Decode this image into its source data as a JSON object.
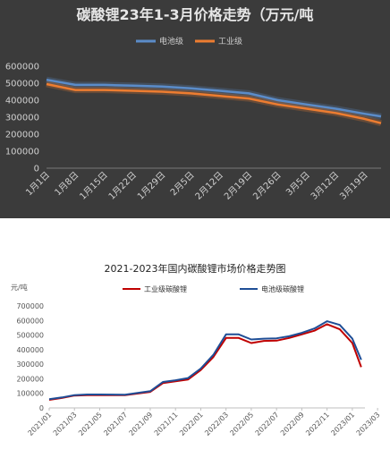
{
  "chart_data": [
    {
      "type": "line",
      "title": "碳酸锂23年1-3月价格走势（万元/吨",
      "background": "#3b3b3b",
      "ylim": [
        0,
        600000
      ],
      "yticks": [
        "600000",
        "500000",
        "400000",
        "300000",
        "200000",
        "100000",
        "0"
      ],
      "categories": [
        "1月1日",
        "1月8日",
        "1月15日",
        "1月22日",
        "1月29日",
        "2月5日",
        "2月12日",
        "2月19日",
        "2月26日",
        "3月5日",
        "3月12日",
        "3月19日"
      ],
      "grid": false,
      "legend": "top",
      "series": [
        {
          "name": "电池级",
          "color": "#5b8cc9",
          "x": [
            0,
            7,
            14,
            21,
            28,
            35,
            42,
            49,
            56,
            63,
            70,
            77,
            81
          ],
          "values": [
            520000,
            490000,
            490000,
            485000,
            480000,
            470000,
            455000,
            440000,
            400000,
            375000,
            350000,
            320000,
            305000
          ]
        },
        {
          "name": "工业级",
          "color": "#ed7d31",
          "x": [
            0,
            7,
            14,
            21,
            28,
            35,
            42,
            49,
            56,
            63,
            70,
            77,
            81
          ],
          "values": [
            495000,
            460000,
            460000,
            455000,
            450000,
            440000,
            425000,
            410000,
            375000,
            350000,
            325000,
            290000,
            265000
          ]
        }
      ]
    },
    {
      "type": "line",
      "title": "2021-2023年国内碳酸锂市场价格走势图",
      "ylabel": "元/吨",
      "ylim": [
        0,
        700000
      ],
      "yticks": [
        "700000",
        "600000",
        "500000",
        "400000",
        "300000",
        "200000",
        "100000",
        "0"
      ],
      "categories": [
        "2021/01",
        "2021/03",
        "2021/05",
        "2021/07",
        "2021/09",
        "2021/11",
        "2022/01",
        "2022/03",
        "2022/05",
        "2022/07",
        "2022/09",
        "2022/11",
        "2023/01",
        "2023/03"
      ],
      "grid": false,
      "legend": "top",
      "series": [
        {
          "name": "工业级碳酸锂",
          "color": "#c00000",
          "x": [
            0,
            1,
            2,
            3,
            4,
            6,
            8,
            9,
            10,
            11,
            12,
            13,
            14,
            15,
            16,
            17,
            18,
            19,
            20,
            21,
            22,
            23,
            24,
            24.7
          ],
          "values": [
            55000,
            68000,
            85000,
            88000,
            88000,
            87000,
            110000,
            170000,
            183000,
            195000,
            260000,
            350000,
            480000,
            480000,
            445000,
            460000,
            462000,
            480000,
            505000,
            530000,
            575000,
            540000,
            445000,
            280000
          ]
        },
        {
          "name": "电池级碳酸锂",
          "color": "#1f4e96",
          "x": [
            0,
            1,
            2,
            3,
            4,
            6,
            8,
            9,
            10,
            11,
            12,
            13,
            14,
            15,
            16,
            17,
            18,
            19,
            20,
            21,
            22,
            23,
            24,
            24.7
          ],
          "values": [
            60000,
            72000,
            88000,
            92000,
            92000,
            90000,
            115000,
            178000,
            190000,
            205000,
            270000,
            365000,
            505000,
            505000,
            470000,
            475000,
            478000,
            492000,
            515000,
            545000,
            595000,
            570000,
            475000,
            330000
          ]
        }
      ]
    }
  ]
}
